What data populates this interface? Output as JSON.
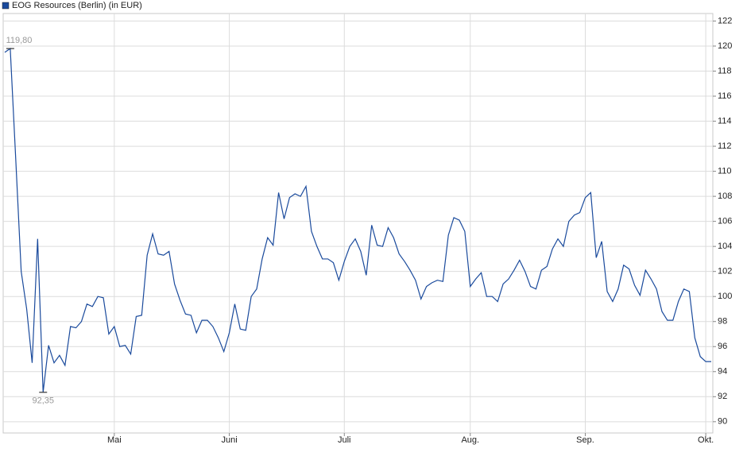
{
  "chart_data": {
    "type": "line",
    "categories": [
      null,
      null,
      null,
      null,
      null,
      null,
      null,
      null,
      null,
      null,
      null,
      null,
      null,
      null,
      null,
      null,
      null,
      null,
      null,
      null,
      "Mai",
      null,
      null,
      null,
      null,
      null,
      null,
      null,
      null,
      null,
      null,
      null,
      null,
      null,
      null,
      null,
      null,
      null,
      null,
      null,
      null,
      "Juni",
      null,
      null,
      null,
      null,
      null,
      null,
      null,
      null,
      null,
      null,
      null,
      null,
      null,
      null,
      null,
      null,
      null,
      null,
      null,
      null,
      "Juli",
      null,
      null,
      null,
      null,
      null,
      null,
      null,
      null,
      null,
      null,
      null,
      null,
      null,
      null,
      null,
      null,
      null,
      null,
      null,
      null,
      null,
      null,
      "Aug.",
      null,
      null,
      null,
      null,
      null,
      null,
      null,
      null,
      null,
      null,
      null,
      null,
      null,
      null,
      null,
      null,
      null,
      null,
      null,
      null,
      "Sep.",
      null,
      null,
      null,
      null,
      null,
      null,
      null,
      null,
      null,
      null,
      null,
      null,
      null,
      null,
      null,
      null,
      null,
      null,
      null,
      null,
      null,
      "Okt.",
      null
    ],
    "series": [
      {
        "name": "EOG Resources (Berlin) (in EUR)",
        "color": "#1a4a9c",
        "values": [
          119.5,
          119.8,
          111,
          102,
          99,
          94.7,
          104.6,
          92.35,
          96.1,
          94.7,
          95.3,
          94.5,
          97.6,
          97.5,
          98.0,
          99.4,
          99.2,
          100,
          99.9,
          97,
          97.6,
          96,
          96.1,
          95.4,
          98.4,
          98.5,
          103.3,
          105,
          103.4,
          103.3,
          103.6,
          101,
          99.7,
          98.6,
          98.5,
          97.1,
          98.1,
          98.1,
          97.6,
          96.7,
          95.6,
          97.1,
          99.4,
          97.4,
          97.3,
          100,
          100.6,
          103,
          104.7,
          104.1,
          108.3,
          106.2,
          107.9,
          108.2,
          108,
          108.8,
          105.2,
          104,
          103,
          103,
          102.7,
          101.3,
          102.8,
          104,
          104.6,
          103.6,
          101.7,
          105.7,
          104.1,
          104,
          105.5,
          104.7,
          103.4,
          102.8,
          102.1,
          101.3,
          99.8,
          100.8,
          101.1,
          101.3,
          101.2,
          104.9,
          106.3,
          106.1,
          105.2,
          100.8,
          101.4,
          101.9,
          100,
          100,
          99.6,
          101,
          101.4,
          102.1,
          102.9,
          102,
          100.8,
          100.6,
          102.1,
          102.4,
          103.8,
          104.6,
          104,
          106,
          106.5,
          106.7,
          107.9,
          108.3,
          103.1,
          104.4,
          100.4,
          99.6,
          100.6,
          102.5,
          102.2,
          100.9,
          100.1,
          102.1,
          101.4,
          100.6,
          98.8,
          98.1,
          98.1,
          99.6,
          100.6,
          100.4,
          96.7,
          95.2,
          94.8,
          94.8
        ],
        "value_labels": [
          null,
          "119,80",
          null,
          null,
          null,
          null,
          null,
          "92,35",
          null,
          null,
          null,
          null,
          null,
          null,
          null,
          null,
          null,
          null,
          null,
          null,
          null,
          null,
          null,
          null,
          null,
          null,
          null,
          null,
          null,
          null,
          null,
          null,
          null,
          null,
          null,
          null,
          null,
          null,
          null,
          null,
          null,
          null,
          null,
          null,
          null,
          null,
          null,
          null,
          null,
          null,
          null,
          null,
          null,
          null,
          null,
          null,
          null,
          null,
          null,
          null,
          null,
          null,
          null,
          null,
          null,
          null,
          null,
          null,
          null,
          null,
          null,
          null,
          null,
          null,
          null,
          null,
          null,
          null,
          null,
          null,
          null,
          null,
          null,
          null,
          null,
          null,
          null,
          null,
          null,
          null,
          null,
          null,
          null,
          null,
          null,
          null,
          null,
          null,
          null,
          null,
          null,
          null,
          null,
          null,
          null,
          null,
          null,
          null,
          null,
          null,
          null,
          null,
          null,
          null,
          null,
          null,
          null,
          null,
          null,
          null,
          null,
          null,
          null,
          null,
          null,
          null,
          null,
          null,
          null,
          null
        ]
      }
    ],
    "ylim": [
      89.1,
      122.6
    ],
    "yticks": [
      90,
      92,
      94,
      96,
      98,
      100,
      102,
      104,
      106,
      108,
      110,
      112,
      114,
      116,
      118,
      120,
      122
    ],
    "grid": true,
    "legend": "top-left"
  }
}
